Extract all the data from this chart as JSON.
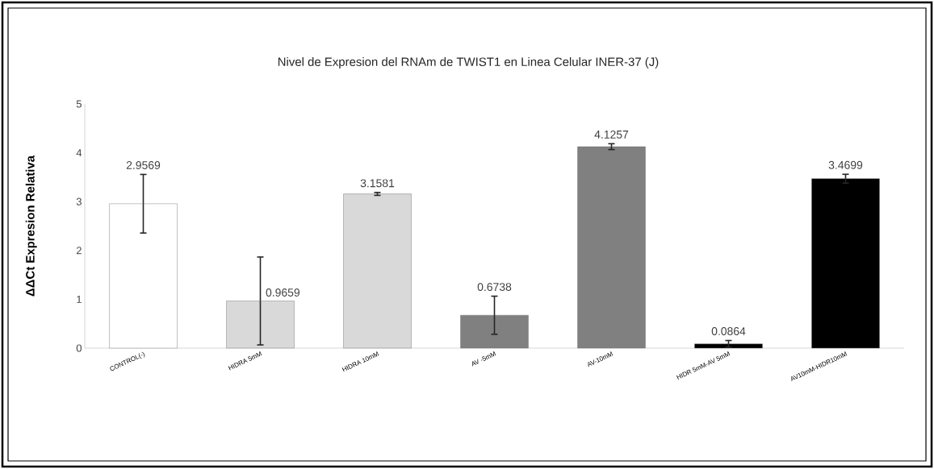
{
  "chart_data": {
    "type": "bar",
    "title": "Nivel de Expresion del RNAm de TWIST1 en Linea Celular INER-37  (J)",
    "ylabel": "ΔΔCt  Expresion  Relativa",
    "categories": [
      "CONTROL(-)",
      "HIDRA 5mM",
      "HIDRA 10mM",
      "AV -5mM",
      "AV-10mM",
      "HIDR 5mM-AV 5mM",
      "AV10mM-HIDR10mM"
    ],
    "values": [
      2.9569,
      0.9659,
      3.1581,
      0.6738,
      4.1257,
      0.0864,
      3.4699
    ],
    "colors": [
      "#ffffff",
      "#d9d9d9",
      "#d9d9d9",
      "#808080",
      "#808080",
      "#000000",
      "#000000"
    ],
    "errors": [
      0.6,
      0.9,
      0.03,
      0.39,
      0.06,
      0.07,
      0.09
    ],
    "data_labels": true,
    "ylim": [
      0,
      5
    ],
    "yticks": [
      0,
      1,
      2,
      3,
      4,
      5
    ],
    "grid": false
  }
}
